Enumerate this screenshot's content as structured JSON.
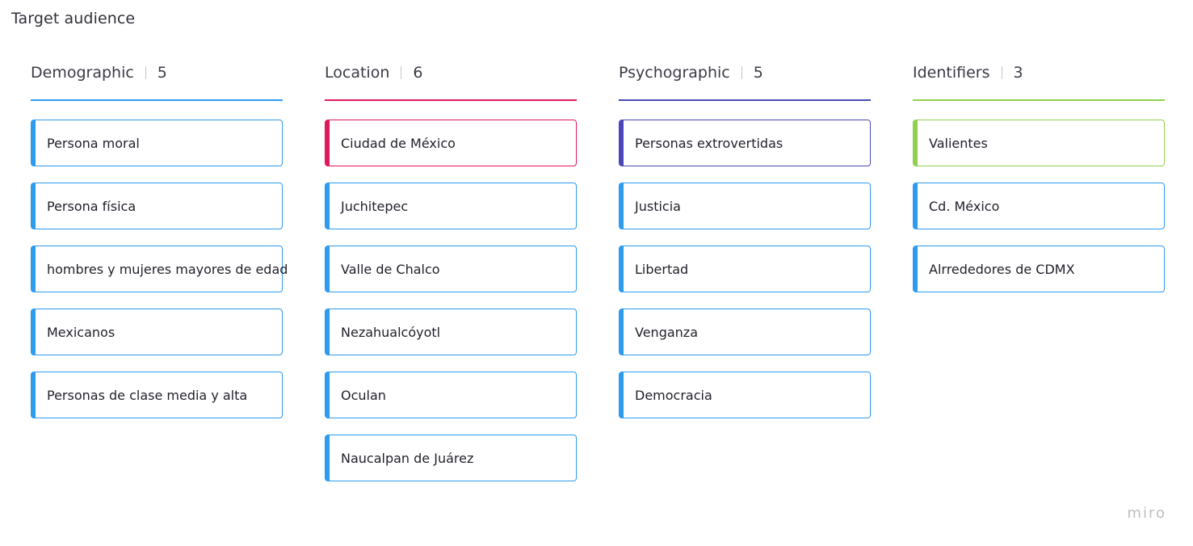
{
  "board": {
    "title": "Target audience",
    "watermark": "miro"
  },
  "colors": {
    "blue": "#2d9bf0",
    "pink": "#e0185c",
    "indigo": "#4a48b8",
    "green": "#8fd14f"
  },
  "columns": [
    {
      "title": "Demographic",
      "count": "5",
      "line_color": "#2d9bf0",
      "cards": [
        {
          "label": "Persona moral",
          "color": "#2d9bf0"
        },
        {
          "label": "Persona física",
          "color": "#2d9bf0"
        },
        {
          "label": "hombres y mujeres mayores de edad",
          "color": "#2d9bf0"
        },
        {
          "label": "Mexicanos",
          "color": "#2d9bf0"
        },
        {
          "label": "Personas de clase media y alta",
          "color": "#2d9bf0"
        }
      ]
    },
    {
      "title": "Location",
      "count": "6",
      "line_color": "#e0185c",
      "cards": [
        {
          "label": "Ciudad de México",
          "color": "#e0185c"
        },
        {
          "label": "Juchitepec",
          "color": "#2d9bf0"
        },
        {
          "label": "Valle de Chalco",
          "color": "#2d9bf0"
        },
        {
          "label": "Nezahualcóyotl",
          "color": "#2d9bf0"
        },
        {
          "label": "Oculan",
          "color": "#2d9bf0"
        },
        {
          "label": "Naucalpan de Juárez",
          "color": "#2d9bf0"
        }
      ]
    },
    {
      "title": "Psychographic",
      "count": "5",
      "line_color": "#4a48b8",
      "cards": [
        {
          "label": "Personas extrovertidas",
          "color": "#4a48b8"
        },
        {
          "label": "Justicia",
          "color": "#2d9bf0"
        },
        {
          "label": "Libertad",
          "color": "#2d9bf0"
        },
        {
          "label": "Venganza",
          "color": "#2d9bf0"
        },
        {
          "label": "Democracia",
          "color": "#2d9bf0"
        }
      ]
    },
    {
      "title": "Identifiers",
      "count": "3",
      "line_color": "#8fd14f",
      "cards": [
        {
          "label": "Valientes",
          "color": "#8fd14f"
        },
        {
          "label": "Cd. México",
          "color": "#2d9bf0"
        },
        {
          "label": "Alrrededores de CDMX",
          "color": "#2d9bf0"
        }
      ]
    }
  ]
}
